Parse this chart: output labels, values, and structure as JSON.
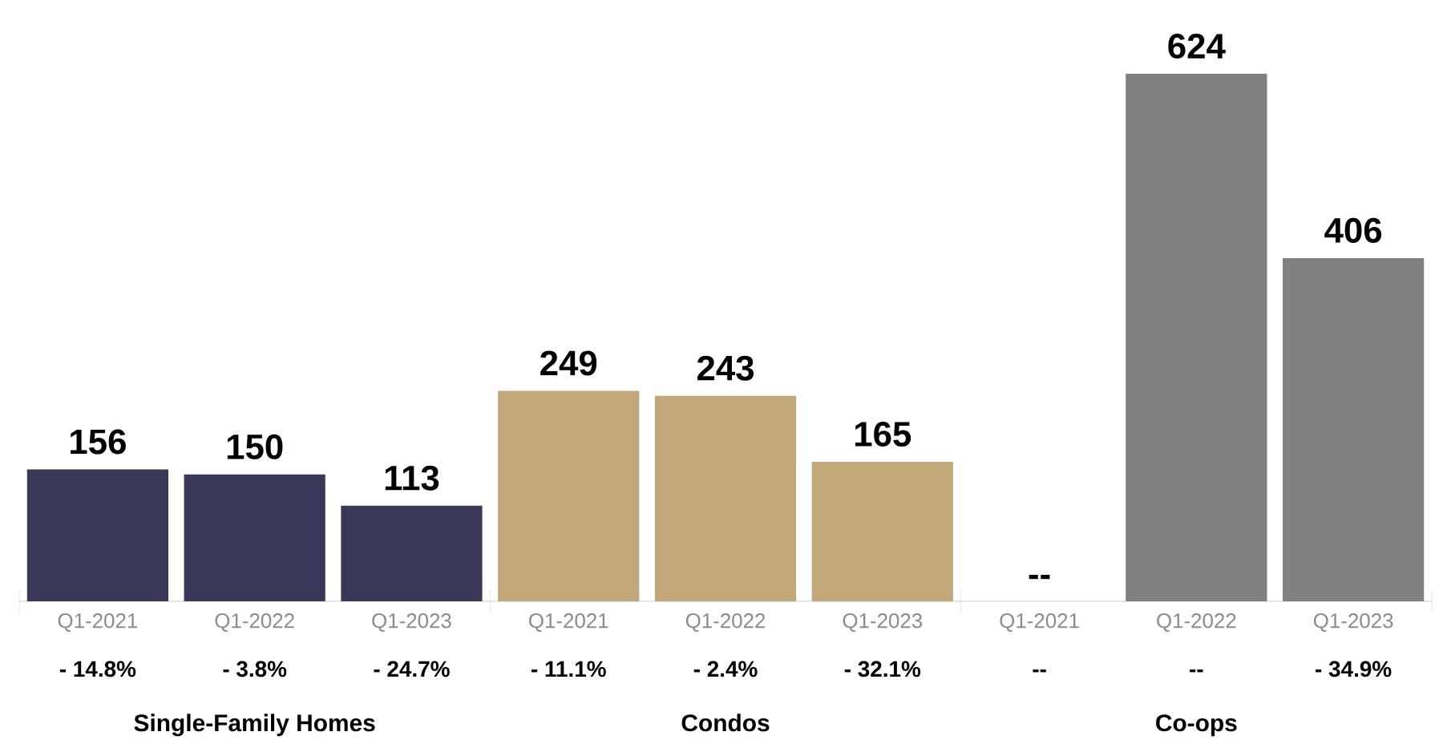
{
  "chart_data": {
    "type": "bar",
    "categories": [
      "Q1-2021",
      "Q1-2022",
      "Q1-2023",
      "Q1-2021",
      "Q1-2022",
      "Q1-2023",
      "Q1-2021",
      "Q1-2022",
      "Q1-2023"
    ],
    "values": [
      156,
      150,
      113,
      249,
      243,
      165,
      null,
      624,
      406
    ],
    "value_labels": [
      "156",
      "150",
      "113",
      "249",
      "243",
      "165",
      "--",
      "624",
      "406"
    ],
    "colors": [
      "#3a3859",
      "#3a3859",
      "#3a3859",
      "#c2a878",
      "#c2a878",
      "#c2a878",
      "#808080",
      "#808080",
      "#808080"
    ],
    "annotations": [
      "- 14.8%",
      "- 3.8%",
      "- 24.7%",
      "- 11.1%",
      "- 2.4%",
      "- 32.1%",
      "--",
      "--",
      "- 34.9%",
      "Single-Family Homes",
      "Condos",
      "Co-ops"
    ]
  }
}
